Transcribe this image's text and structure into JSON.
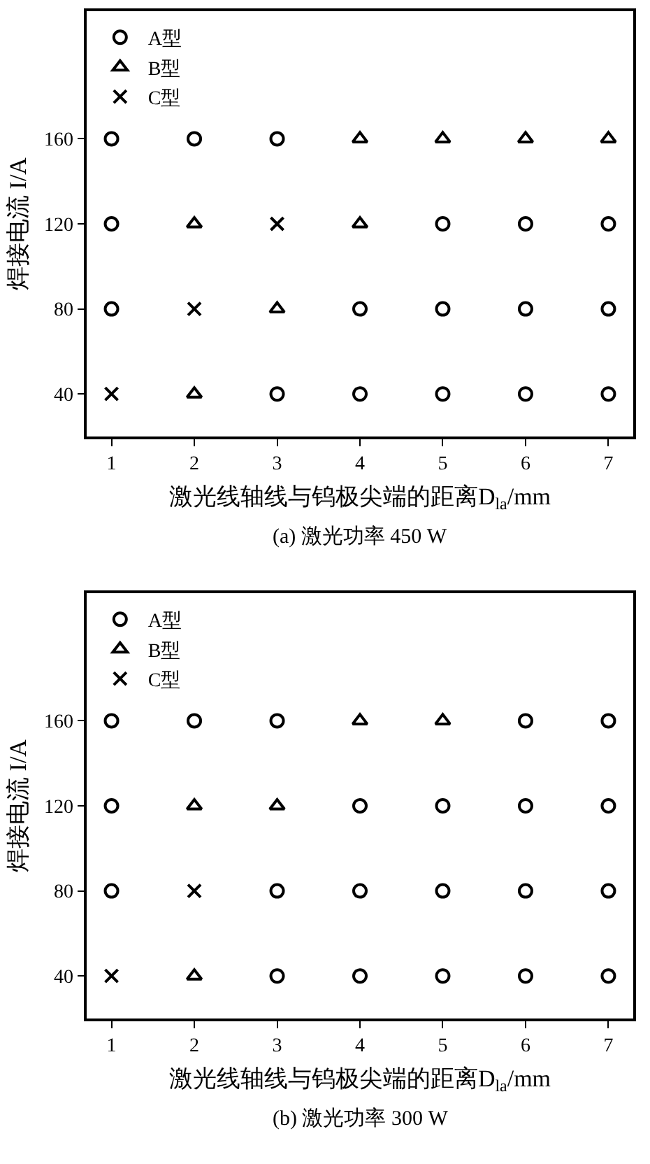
{
  "chart_data": [
    {
      "type": "scatter",
      "title": "(a) 激光功率 450 W",
      "xlabel": "激光线轴线与钨极尖端的距离D$_{la}$/mm",
      "ylabel": "焊接电流 I/A",
      "xlim": [
        0.7,
        7.3
      ],
      "xticks": [
        1,
        2,
        3,
        4,
        5,
        6,
        7
      ],
      "ylim": [
        20,
        220
      ],
      "yticks": [
        40,
        80,
        120,
        160
      ],
      "grid": false,
      "legend": "top left",
      "series": [
        {
          "name": "A型",
          "color": "#000000",
          "marker": "circle",
          "x": [
            1,
            1,
            1,
            2,
            3,
            3,
            4,
            4,
            5,
            5,
            5,
            6,
            6,
            6,
            7,
            7,
            7
          ],
          "values": [
            160,
            120,
            80,
            160,
            160,
            40,
            80,
            40,
            120,
            80,
            40,
            120,
            80,
            40,
            120,
            80,
            40
          ]
        },
        {
          "name": "B型",
          "color": "#000000",
          "marker": "triangle",
          "x": [
            2,
            2,
            3,
            4,
            4,
            5,
            6,
            7
          ],
          "values": [
            120,
            40,
            80,
            160,
            120,
            160,
            160,
            160
          ]
        },
        {
          "name": "C型",
          "color": "#000000",
          "marker": "cross",
          "x": [
            1,
            2,
            3
          ],
          "values": [
            40,
            80,
            120
          ]
        }
      ]
    },
    {
      "type": "scatter",
      "title": "(b) 激光功率 300 W",
      "xlabel": "激光线轴线与钨极尖端的距离D$_{la}$/mm",
      "ylabel": "焊接电流 I/A",
      "xlim": [
        0.7,
        7.3
      ],
      "xticks": [
        1,
        2,
        3,
        4,
        5,
        6,
        7
      ],
      "ylim": [
        20,
        220
      ],
      "yticks": [
        40,
        80,
        120,
        160
      ],
      "grid": false,
      "legend": "top left",
      "series": [
        {
          "name": "A型",
          "color": "#000000",
          "marker": "circle",
          "x": [
            1,
            1,
            1,
            2,
            3,
            3,
            3,
            4,
            4,
            4,
            5,
            5,
            5,
            6,
            6,
            6,
            6,
            7,
            7,
            7,
            7
          ],
          "values": [
            160,
            120,
            80,
            160,
            160,
            80,
            40,
            120,
            80,
            40,
            120,
            80,
            40,
            160,
            120,
            80,
            40,
            160,
            120,
            80,
            40
          ]
        },
        {
          "name": "B型",
          "color": "#000000",
          "marker": "triangle",
          "x": [
            2,
            2,
            3,
            4,
            5
          ],
          "values": [
            120,
            40,
            120,
            160,
            160
          ]
        },
        {
          "name": "C型",
          "color": "#000000",
          "marker": "cross",
          "x": [
            1,
            2
          ],
          "values": [
            40,
            80
          ]
        }
      ]
    }
  ]
}
